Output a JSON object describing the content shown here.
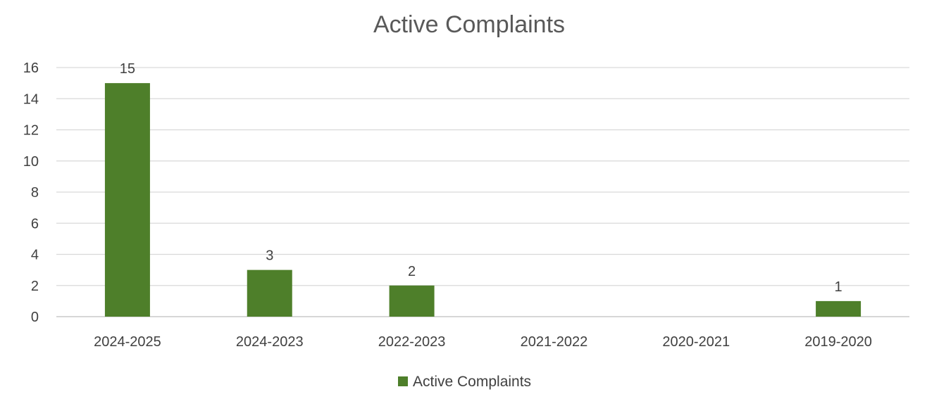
{
  "chart_data": {
    "type": "bar",
    "title": "Active Complaints",
    "xlabel": "",
    "ylabel": "",
    "categories": [
      "2024-2025",
      "2024-2023",
      "2022-2023",
      "2021-2022",
      "2020-2021",
      "2019-2020"
    ],
    "series": [
      {
        "name": "Active Complaints",
        "values": [
          15,
          3,
          2,
          0,
          0,
          1
        ],
        "data_labels": [
          "15",
          "3",
          "2",
          "",
          "",
          "1"
        ]
      }
    ],
    "ylim": [
      0,
      16
    ],
    "yticks": [
      0,
      2,
      4,
      6,
      8,
      10,
      12,
      14,
      16
    ],
    "grid": true,
    "legend": "bottom",
    "colors": {
      "bar": "#4e7f2a"
    }
  }
}
